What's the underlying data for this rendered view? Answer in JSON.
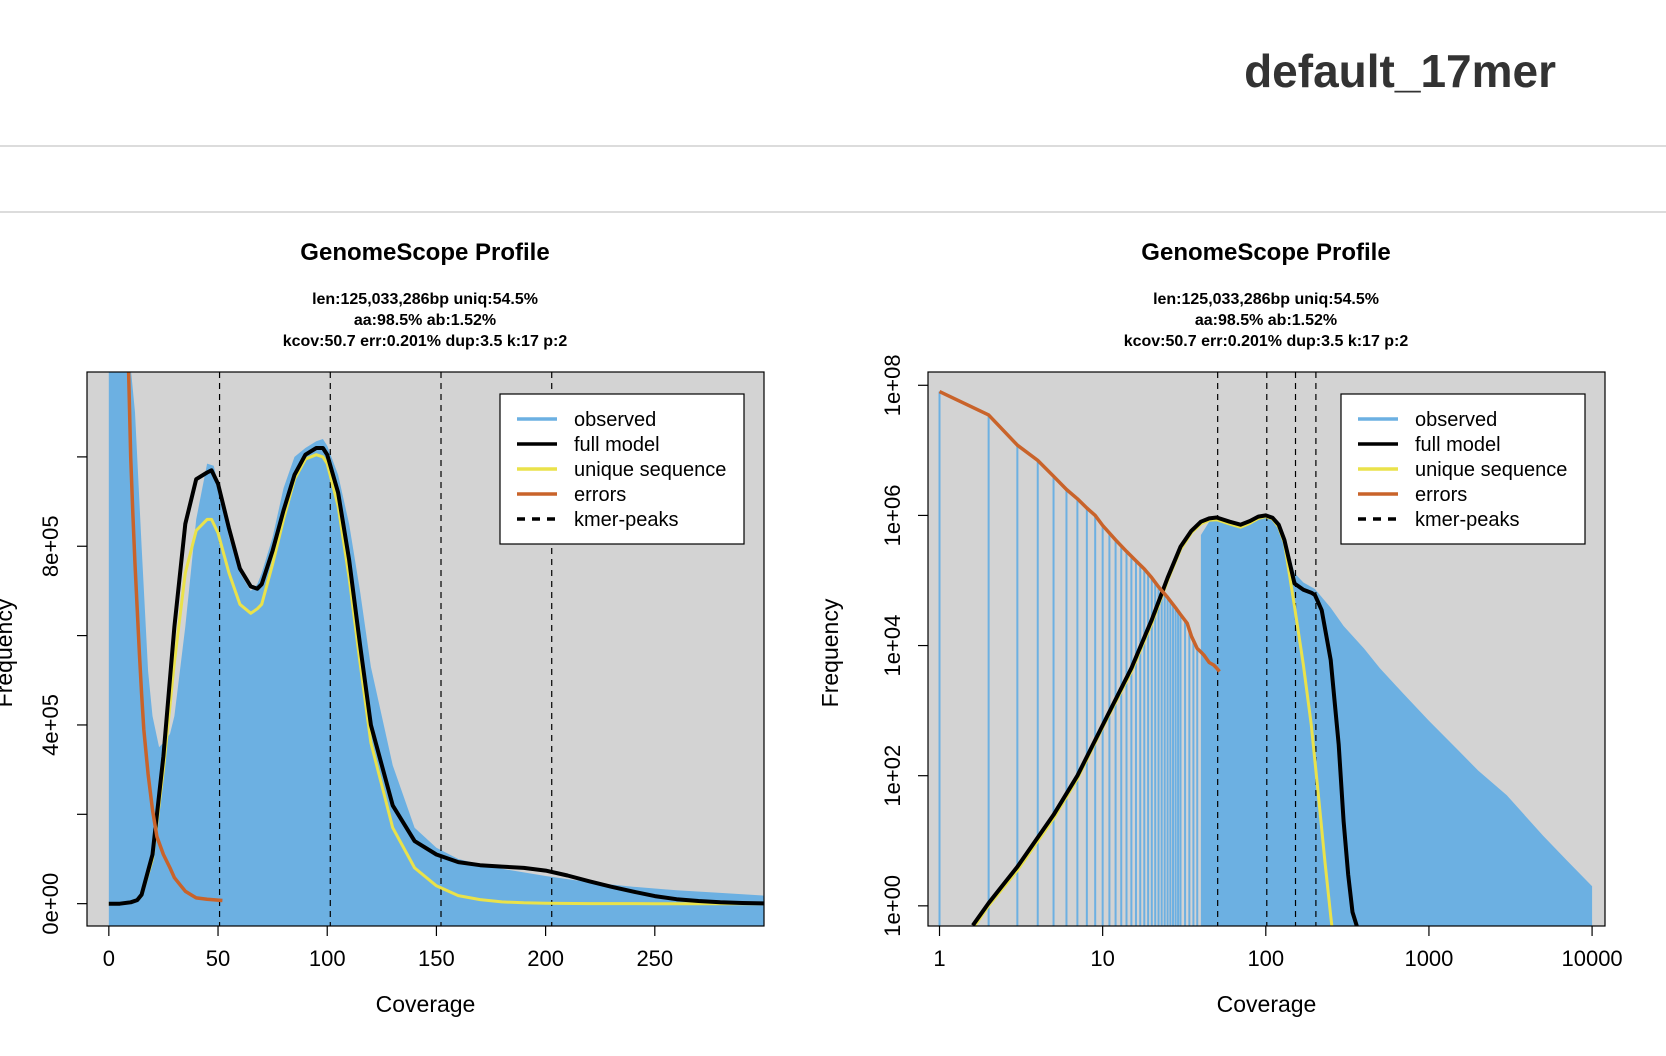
{
  "page": {
    "title": "default_17mer"
  },
  "chart_data": [
    {
      "type": "area",
      "panel": "linear",
      "title": "GenomeScope Profile",
      "subtitle_lines": [
        "len:125,033,286bp uniq:54.5%",
        "aa:98.5% ab:1.52%",
        "kcov:50.7 err:0.201%  dup:3.5  k:17 p:2"
      ],
      "xlabel": "Coverage",
      "ylabel": "Frequency",
      "xlim": [
        -10,
        300
      ],
      "ylim": [
        -50000,
        1190000
      ],
      "x_ticks": [
        {
          "value": 0,
          "label": "0"
        },
        {
          "value": 50,
          "label": "50"
        },
        {
          "value": 100,
          "label": "100"
        },
        {
          "value": 150,
          "label": "150"
        },
        {
          "value": 200,
          "label": "200"
        },
        {
          "value": 250,
          "label": "250"
        }
      ],
      "y_ticks": [
        {
          "value": 0,
          "label": "0e+00"
        },
        {
          "value": 200000,
          "label": ""
        },
        {
          "value": 400000,
          "label": "4e+05"
        },
        {
          "value": 600000,
          "label": ""
        },
        {
          "value": 800000,
          "label": "8e+05"
        },
        {
          "value": 1000000,
          "label": ""
        }
      ],
      "kmer_peaks": [
        50.7,
        101.4,
        152.1,
        202.8
      ],
      "legend_position": "top-right",
      "legend": [
        {
          "label": "observed",
          "color": "#6CB0E2",
          "style": "solid"
        },
        {
          "label": "full model",
          "color": "#000000",
          "style": "solid"
        },
        {
          "label": "unique sequence",
          "color": "#EAE24A",
          "style": "solid"
        },
        {
          "label": "errors",
          "color": "#C9632A",
          "style": "solid"
        },
        {
          "label": "kmer-peaks",
          "color": "#000000",
          "style": "dashed"
        }
      ],
      "series": [
        {
          "name": "observed",
          "x": [
            0,
            1,
            3,
            5,
            8,
            10,
            12,
            15,
            18,
            20,
            23,
            25,
            28,
            30,
            35,
            40,
            45,
            48,
            50,
            55,
            60,
            65,
            68,
            70,
            75,
            80,
            85,
            90,
            95,
            98,
            100,
            105,
            110,
            115,
            120,
            130,
            140,
            150,
            160,
            170,
            180,
            190,
            200,
            220,
            240,
            260,
            280,
            300
          ],
          "y": [
            1200000,
            1200000,
            1200000,
            1200000,
            1200000,
            1200000,
            1100000,
            800000,
            520000,
            420000,
            350000,
            360000,
            380000,
            420000,
            620000,
            860000,
            985000,
            980000,
            940000,
            820000,
            740000,
            700000,
            715000,
            740000,
            820000,
            930000,
            1000000,
            1020000,
            1035000,
            1040000,
            1025000,
            960000,
            850000,
            700000,
            530000,
            310000,
            170000,
            125000,
            100000,
            88000,
            78000,
            70000,
            62000,
            48000,
            38000,
            30000,
            24000,
            18000
          ]
        },
        {
          "name": "full model",
          "x": [
            0,
            5,
            10,
            13,
            15,
            20,
            25,
            30,
            35,
            40,
            45,
            47,
            50,
            55,
            60,
            65,
            68,
            70,
            75,
            80,
            85,
            90,
            95,
            98,
            100,
            105,
            110,
            115,
            120,
            130,
            140,
            150,
            160,
            170,
            180,
            190,
            200,
            210,
            220,
            230,
            240,
            250,
            260,
            270,
            280,
            290,
            300
          ],
          "y": [
            0,
            0,
            3000,
            8000,
            20000,
            110000,
            330000,
            620000,
            850000,
            950000,
            965000,
            970000,
            940000,
            840000,
            750000,
            710000,
            705000,
            715000,
            790000,
            880000,
            960000,
            1005000,
            1020000,
            1020000,
            1005000,
            920000,
            770000,
            580000,
            400000,
            220000,
            140000,
            110000,
            93000,
            86000,
            83000,
            80000,
            74000,
            63000,
            50000,
            38000,
            27000,
            17000,
            10000,
            6000,
            3000,
            1500,
            500
          ]
        },
        {
          "name": "unique sequence",
          "x": [
            0,
            5,
            10,
            13,
            15,
            20,
            25,
            30,
            35,
            40,
            45,
            47,
            50,
            55,
            60,
            65,
            68,
            70,
            75,
            80,
            85,
            90,
            95,
            98,
            100,
            105,
            110,
            115,
            120,
            130,
            140,
            150,
            160,
            170,
            180,
            190,
            200,
            220,
            250,
            300
          ],
          "y": [
            0,
            0,
            3000,
            8000,
            18000,
            100000,
            300000,
            540000,
            740000,
            835000,
            860000,
            860000,
            830000,
            740000,
            670000,
            650000,
            660000,
            670000,
            760000,
            860000,
            950000,
            995000,
            1005000,
            1000000,
            985000,
            890000,
            730000,
            540000,
            360000,
            170000,
            80000,
            40000,
            18000,
            9000,
            4000,
            2000,
            1000,
            200,
            0,
            0
          ]
        },
        {
          "name": "errors",
          "x": [
            9,
            10,
            11,
            12,
            13,
            14,
            15,
            16,
            18,
            20,
            22,
            25,
            28,
            30,
            33,
            35,
            38,
            40,
            45,
            50,
            52
          ],
          "y": [
            1200000,
            1000000,
            870000,
            760000,
            660000,
            560000,
            470000,
            390000,
            290000,
            210000,
            150000,
            110000,
            80000,
            58000,
            40000,
            28000,
            19000,
            13000,
            10000,
            8000,
            7000
          ]
        }
      ]
    },
    {
      "type": "area",
      "panel": "log",
      "title": "GenomeScope Profile",
      "subtitle_lines": [
        "len:125,033,286bp uniq:54.5%",
        "aa:98.5% ab:1.52%",
        "kcov:50.7 err:0.201%  dup:3.5  k:17 p:2"
      ],
      "xlabel": "Coverage",
      "ylabel": "Frequency",
      "x_scale": "log",
      "y_scale": "log",
      "xlim": [
        0.85,
        12000
      ],
      "ylim": [
        0.49,
        160000000
      ],
      "x_ticks": [
        {
          "value": 1,
          "label": "1"
        },
        {
          "value": 10,
          "label": "10"
        },
        {
          "value": 100,
          "label": "100"
        },
        {
          "value": 1000,
          "label": "1000"
        },
        {
          "value": 10000,
          "label": "10000"
        }
      ],
      "y_ticks": [
        {
          "value": 1,
          "label": "1e+00"
        },
        {
          "value": 100,
          "label": "1e+02"
        },
        {
          "value": 10000,
          "label": "1e+04"
        },
        {
          "value": 1000000,
          "label": "1e+06"
        },
        {
          "value": 100000000,
          "label": "1e+08"
        }
      ],
      "kmer_peaks": [
        50.7,
        101.4,
        152.1,
        202.8
      ],
      "legend_position": "top-right",
      "legend": [
        {
          "label": "observed",
          "color": "#6CB0E2",
          "style": "solid"
        },
        {
          "label": "full model",
          "color": "#000000",
          "style": "solid"
        },
        {
          "label": "unique sequence",
          "color": "#EAE24A",
          "style": "solid"
        },
        {
          "label": "errors",
          "color": "#C9632A",
          "style": "solid"
        },
        {
          "label": "kmer-peaks",
          "color": "#000000",
          "style": "dashed"
        }
      ],
      "observed_spike_x": [
        1,
        2,
        3,
        4,
        5,
        6,
        7,
        8,
        9,
        10,
        11,
        12,
        13,
        14,
        15,
        16,
        17,
        18,
        19,
        20,
        21,
        22,
        23,
        24,
        25,
        26,
        27,
        28,
        29,
        30,
        32,
        34,
        36,
        38
      ],
      "series": [
        {
          "name": "observed",
          "x": [
            40,
            45,
            50,
            60,
            70,
            80,
            90,
            100,
            110,
            120,
            130,
            150,
            170,
            200,
            250,
            300,
            400,
            500,
            700,
            1000,
            1500,
            2000,
            3000,
            5000,
            7000,
            10000
          ],
          "y": [
            500000,
            800000,
            940000,
            800000,
            720000,
            830000,
            950000,
            1000000,
            930000,
            720000,
            480000,
            130000,
            93000,
            74000,
            38000,
            20000,
            9000,
            4500,
            1800,
            700,
            250,
            120,
            50,
            12,
            5,
            2
          ]
        },
        {
          "name": "full model",
          "x": [
            1.6,
            2,
            3,
            5,
            7,
            10,
            15,
            20,
            25,
            30,
            35,
            40,
            45,
            50,
            60,
            70,
            80,
            90,
            100,
            110,
            120,
            130,
            150,
            170,
            190,
            200,
            220,
            250,
            280,
            300,
            320,
            340,
            360,
            380
          ],
          "y": [
            0.5,
            1.1,
            4,
            25,
            100,
            600,
            4500,
            25000,
            110000,
            330000,
            580000,
            800000,
            900000,
            930000,
            800000,
            720000,
            820000,
            960000,
            1000000,
            920000,
            720000,
            420000,
            90000,
            72000,
            65000,
            60000,
            35000,
            6000,
            300,
            20,
            3,
            0.8,
            0.5,
            0.3
          ]
        },
        {
          "name": "unique sequence",
          "x": [
            1.65,
            2,
            3,
            5,
            7,
            10,
            15,
            20,
            25,
            30,
            35,
            40,
            45,
            50,
            60,
            70,
            80,
            90,
            100,
            110,
            120,
            130,
            150,
            170,
            190,
            210,
            230,
            250,
            260
          ],
          "y": [
            0.5,
            1,
            3.5,
            22,
            90,
            550,
            4000,
            22000,
            100000,
            300000,
            540000,
            740000,
            840000,
            860000,
            740000,
            660000,
            760000,
            900000,
            960000,
            880000,
            660000,
            380000,
            40000,
            5000,
            600,
            50,
            5,
            0.7,
            0.3
          ]
        },
        {
          "name": "errors",
          "x": [
            1,
            2,
            3,
            4,
            5,
            6,
            7,
            8,
            9,
            10,
            12,
            14,
            16,
            18,
            20,
            22,
            25,
            28,
            30,
            33,
            35,
            38,
            40,
            42,
            45,
            48,
            50,
            52
          ],
          "y": [
            80000000,
            35000000,
            12000000,
            7000000,
            4000000,
            2500000,
            1800000,
            1300000,
            1000000,
            700000,
            420000,
            280000,
            200000,
            150000,
            110000,
            80000,
            55000,
            38000,
            30000,
            22000,
            14000,
            9000,
            8000,
            7000,
            5500,
            5000,
            4500,
            4000
          ]
        }
      ]
    }
  ]
}
